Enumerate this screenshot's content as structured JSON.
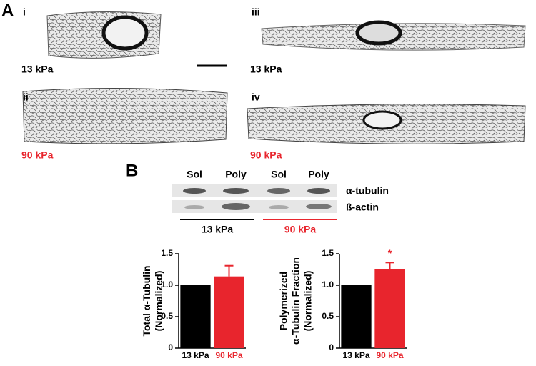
{
  "figure": {
    "panel_a_label": "A",
    "panel_b_label": "B",
    "panels": [
      {
        "label": "i",
        "stiffness": "13 kPa"
      },
      {
        "label": "ii",
        "stiffness": "90 kPa"
      },
      {
        "label": "iii",
        "stiffness": "13 kPa"
      },
      {
        "label": "iv",
        "stiffness": "90 kPa"
      }
    ],
    "blot": {
      "lanes": [
        "Sol",
        "Poly",
        "Sol",
        "Poly"
      ],
      "bands": [
        "α-tubulin",
        "ß-actin"
      ],
      "groups": [
        "13 kPa",
        "90 kPa"
      ]
    }
  },
  "chart_data": [
    {
      "type": "bar",
      "ylabel": [
        "Total α-Tubulin",
        "(Normalized)"
      ],
      "categories": [
        "13 kPa",
        "90 kPa"
      ],
      "values": [
        1,
        1.14
      ],
      "errors": [
        null,
        0.17
      ],
      "colors": [
        "#000000",
        "#e8252d"
      ],
      "ylim": [
        0,
        1.5
      ],
      "yticks": [
        0,
        0.5,
        {
          "value": 1,
          "label": "1.0"
        },
        1.5
      ]
    },
    {
      "type": "bar",
      "ylabel": [
        "Polymerized",
        "α-Tubulin Fraction",
        "(Normalized)"
      ],
      "categories": [
        "13 kPa",
        "90 kPa"
      ],
      "values": [
        1,
        1.26
      ],
      "errors": [
        null,
        0.1
      ],
      "colors": [
        "#000000",
        "#e8252d"
      ],
      "ylim": [
        0,
        1.5
      ],
      "yticks": [
        0,
        0.5,
        {
          "value": 1,
          "label": "1.0"
        },
        1.5
      ],
      "annotation": "*"
    }
  ]
}
